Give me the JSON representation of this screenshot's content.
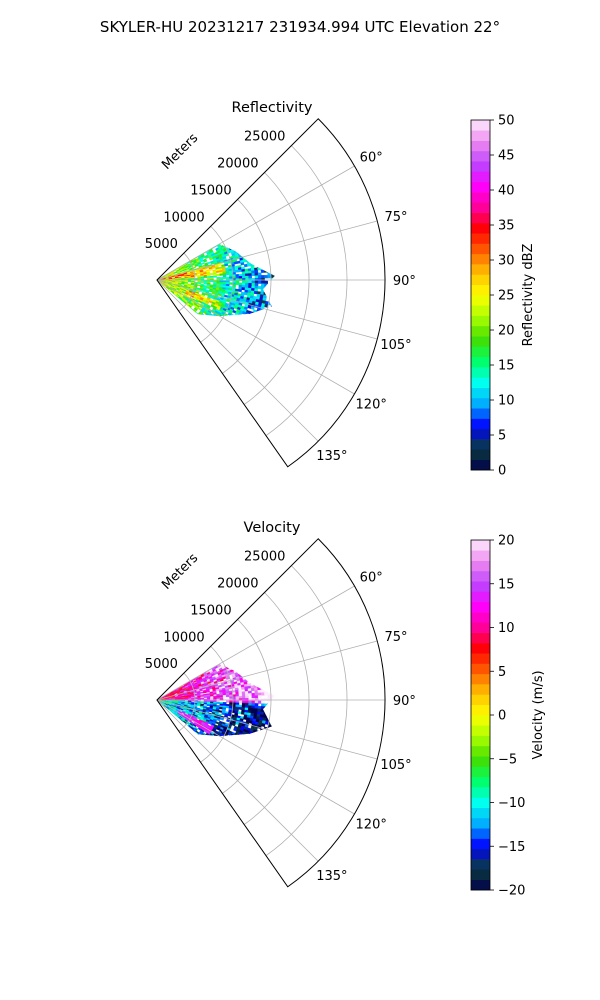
{
  "figure": {
    "title": "SKYLER-HU  20231217  231934.994 UTC Elevation 22°"
  },
  "chart_data": [
    {
      "type": "heatmap",
      "projection": "polar-sector",
      "title": "Reflectivity",
      "radial_label": "Meters",
      "azimuth_range_deg": [
        45,
        145
      ],
      "radial_ticks": [
        5000,
        10000,
        15000,
        20000,
        25000
      ],
      "radial_tick_labels": [
        "5000",
        "10000",
        "15000",
        "20000",
        "25000"
      ],
      "angle_ticks": [
        60,
        75,
        90,
        105,
        120,
        135
      ],
      "angle_tick_labels": [
        "60°",
        "75°",
        "90°",
        "105°",
        "120°",
        "135°"
      ],
      "max_range_m": 30000,
      "colorbar": {
        "label": "Reflectivity dBZ",
        "range": [
          0,
          50
        ],
        "ticks": [
          0,
          5,
          10,
          15,
          20,
          25,
          30,
          35,
          40,
          45,
          50
        ],
        "tick_labels": [
          "0",
          "5",
          "10",
          "15",
          "20",
          "25",
          "30",
          "35",
          "40",
          "45",
          "50"
        ]
      },
      "echo_extent": [
        {
          "azimuth_deg": 60,
          "range_m": 9500
        },
        {
          "azimuth_deg": 70,
          "range_m": 11000
        },
        {
          "azimuth_deg": 80,
          "range_m": 12500
        },
        {
          "azimuth_deg": 88,
          "range_m": 15500
        },
        {
          "azimuth_deg": 95,
          "range_m": 14000
        },
        {
          "azimuth_deg": 103,
          "range_m": 15500
        },
        {
          "azimuth_deg": 110,
          "range_m": 13000
        },
        {
          "azimuth_deg": 120,
          "range_m": 9500
        },
        {
          "azimuth_deg": 130,
          "range_m": 7000
        }
      ]
    },
    {
      "type": "heatmap",
      "projection": "polar-sector",
      "title": "Velocity",
      "radial_label": "Meters",
      "azimuth_range_deg": [
        45,
        145
      ],
      "radial_ticks": [
        5000,
        10000,
        15000,
        20000,
        25000
      ],
      "radial_tick_labels": [
        "5000",
        "10000",
        "15000",
        "20000",
        "25000"
      ],
      "angle_ticks": [
        60,
        75,
        90,
        105,
        120,
        135
      ],
      "angle_tick_labels": [
        "60°",
        "75°",
        "90°",
        "105°",
        "120°",
        "135°"
      ],
      "max_range_m": 30000,
      "colorbar": {
        "label": "Velocity (m/s)",
        "range": [
          -20,
          20
        ],
        "ticks": [
          -20,
          -15,
          -10,
          -5,
          0,
          5,
          10,
          15,
          20
        ],
        "tick_labels": [
          "−20",
          "−15",
          "−10",
          "−5",
          "0",
          "5",
          "10",
          "15",
          "20"
        ]
      },
      "echo_extent": [
        {
          "azimuth_deg": 60,
          "range_m": 9500
        },
        {
          "azimuth_deg": 70,
          "range_m": 11000
        },
        {
          "azimuth_deg": 80,
          "range_m": 12500
        },
        {
          "azimuth_deg": 88,
          "range_m": 15500
        },
        {
          "azimuth_deg": 95,
          "range_m": 14000
        },
        {
          "azimuth_deg": 103,
          "range_m": 15500
        },
        {
          "azimuth_deg": 110,
          "range_m": 13000
        },
        {
          "azimuth_deg": 120,
          "range_m": 9500
        },
        {
          "azimuth_deg": 130,
          "range_m": 7000
        }
      ]
    }
  ],
  "colors": {
    "reflectivity_stops": [
      "#02004d",
      "#0a3d3d",
      "#0000ff",
      "#00aaff",
      "#00ffee",
      "#00ff66",
      "#44dd00",
      "#aaff00",
      "#ffff00",
      "#ffc000",
      "#ff6000",
      "#ff0000",
      "#ff0099",
      "#ff00ff",
      "#bb44ff",
      "#ee88ee",
      "#ffeeff"
    ],
    "velocity_stops": [
      "#02004d",
      "#0a3d3d",
      "#0000ff",
      "#00aaff",
      "#00ffee",
      "#00ff66",
      "#44dd00",
      "#aaff00",
      "#ffff00",
      "#ffc000",
      "#ff6000",
      "#ff0000",
      "#ff0099",
      "#ff00ff",
      "#bb44ff",
      "#ee88ee",
      "#ffeeff"
    ]
  }
}
